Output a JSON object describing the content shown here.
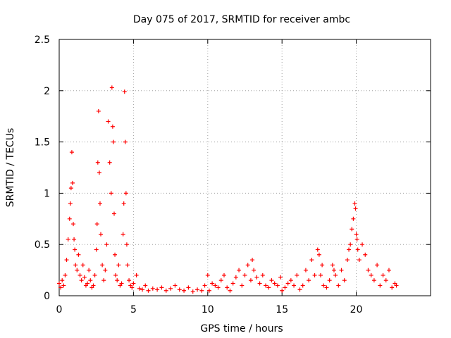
{
  "chart_data": {
    "type": "scatter",
    "title": "Day 075 of 2017, SRMTID for receiver ambc",
    "xlabel": "GPS time / hours",
    "ylabel": "SRMTID / TECUs",
    "xlim": [
      0,
      25
    ],
    "ylim": [
      0,
      2.5
    ],
    "x_ticks": [
      "0",
      "5",
      "10",
      "15",
      "20"
    ],
    "y_ticks": [
      "0",
      "0.5",
      "1",
      "1.5",
      "2",
      "2.5"
    ],
    "grid": true,
    "marker": "+",
    "series": [
      {
        "name": "SRMTID",
        "color": "#ff0000",
        "x": [
          0.0,
          0.1,
          0.2,
          0.3,
          0.4,
          0.5,
          0.6,
          0.7,
          0.75,
          0.8,
          0.85,
          0.9,
          0.95,
          1.0,
          1.05,
          1.1,
          1.2,
          1.3,
          1.4,
          1.5,
          1.6,
          1.7,
          1.8,
          1.9,
          2.0,
          2.1,
          2.2,
          2.3,
          2.4,
          2.5,
          2.55,
          2.6,
          2.65,
          2.7,
          2.75,
          2.8,
          2.9,
          3.0,
          3.1,
          3.2,
          3.3,
          3.4,
          3.5,
          3.55,
          3.6,
          3.65,
          3.7,
          3.75,
          3.8,
          3.9,
          4.0,
          4.1,
          4.2,
          4.3,
          4.35,
          4.4,
          4.45,
          4.5,
          4.55,
          4.6,
          4.7,
          4.8,
          4.9,
          5.0,
          5.2,
          5.4,
          5.6,
          5.8,
          6.0,
          6.3,
          6.6,
          6.9,
          7.2,
          7.5,
          7.8,
          8.1,
          8.4,
          8.7,
          9.0,
          9.3,
          9.6,
          9.8,
          10.0,
          10.1,
          10.3,
          10.5,
          10.7,
          10.9,
          11.1,
          11.3,
          11.5,
          11.7,
          11.9,
          12.1,
          12.3,
          12.5,
          12.7,
          12.9,
          13.0,
          13.1,
          13.3,
          13.5,
          13.7,
          13.9,
          14.1,
          14.3,
          14.5,
          14.7,
          14.9,
          15.0,
          15.2,
          15.4,
          15.6,
          15.8,
          16.0,
          16.2,
          16.4,
          16.6,
          16.8,
          17.0,
          17.2,
          17.4,
          17.5,
          17.6,
          17.7,
          17.8,
          18.0,
          18.2,
          18.4,
          18.5,
          18.6,
          18.8,
          19.0,
          19.2,
          19.4,
          19.5,
          19.6,
          19.7,
          19.8,
          19.9,
          19.95,
          20.0,
          20.05,
          20.1,
          20.2,
          20.4,
          20.6,
          20.8,
          21.0,
          21.2,
          21.4,
          21.6,
          21.8,
          22.0,
          22.2,
          22.4,
          22.6,
          22.7
        ],
        "values": [
          0.12,
          0.08,
          0.15,
          0.1,
          0.2,
          0.35,
          0.55,
          0.75,
          0.9,
          1.05,
          1.4,
          1.1,
          0.7,
          0.55,
          0.45,
          0.3,
          0.25,
          0.4,
          0.2,
          0.15,
          0.3,
          0.18,
          0.1,
          0.12,
          0.25,
          0.15,
          0.08,
          0.1,
          0.2,
          0.45,
          0.7,
          1.3,
          1.8,
          1.2,
          0.9,
          0.6,
          0.3,
          0.15,
          0.25,
          0.5,
          1.7,
          1.3,
          1.0,
          2.03,
          1.65,
          1.5,
          0.8,
          0.4,
          0.2,
          0.15,
          0.3,
          0.1,
          0.12,
          0.6,
          0.9,
          1.99,
          1.5,
          1.0,
          0.5,
          0.3,
          0.15,
          0.1,
          0.08,
          0.12,
          0.2,
          0.07,
          0.06,
          0.1,
          0.05,
          0.07,
          0.06,
          0.08,
          0.05,
          0.07,
          0.1,
          0.06,
          0.05,
          0.08,
          0.04,
          0.06,
          0.05,
          0.1,
          0.2,
          0.05,
          0.12,
          0.1,
          0.08,
          0.15,
          0.2,
          0.08,
          0.05,
          0.12,
          0.18,
          0.25,
          0.1,
          0.2,
          0.3,
          0.15,
          0.35,
          0.25,
          0.18,
          0.12,
          0.2,
          0.1,
          0.08,
          0.15,
          0.12,
          0.1,
          0.18,
          0.05,
          0.08,
          0.12,
          0.15,
          0.1,
          0.2,
          0.06,
          0.1,
          0.25,
          0.15,
          0.35,
          0.2,
          0.45,
          0.4,
          0.2,
          0.3,
          0.1,
          0.08,
          0.15,
          0.3,
          0.25,
          0.2,
          0.1,
          0.25,
          0.15,
          0.35,
          0.45,
          0.5,
          0.65,
          0.75,
          0.9,
          0.85,
          0.6,
          0.55,
          0.45,
          0.35,
          0.5,
          0.4,
          0.25,
          0.2,
          0.15,
          0.3,
          0.1,
          0.2,
          0.15,
          0.25,
          0.08,
          0.12,
          0.1
        ]
      }
    ]
  }
}
